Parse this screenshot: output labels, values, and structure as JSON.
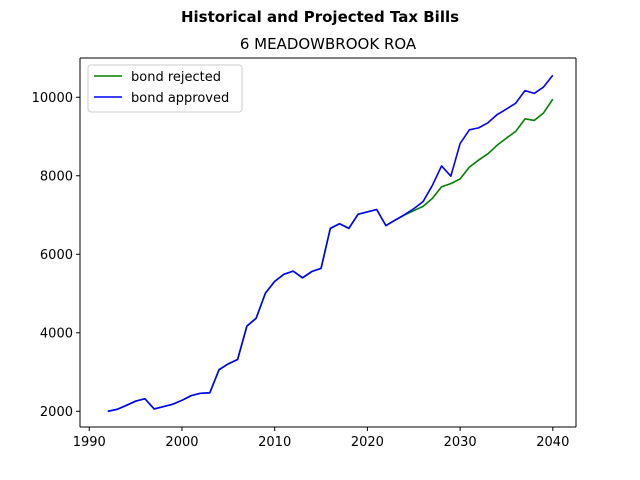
{
  "chart_data": {
    "type": "line",
    "suptitle": "Historical and Projected Tax Bills",
    "title": "6 MEADOWBROOK ROA",
    "xlabel": "",
    "ylabel": "",
    "xlim": [
      1989,
      2042.5
    ],
    "ylim": [
      1600,
      11000
    ],
    "xticks": [
      1990,
      2000,
      2010,
      2020,
      2030,
      2040
    ],
    "yticks": [
      2000,
      4000,
      6000,
      8000,
      10000
    ],
    "grid": false,
    "legend_position": "top-left",
    "series": [
      {
        "name": "bond rejected",
        "color": "#008000",
        "x": [
          1992,
          1993,
          1994,
          1995,
          1996,
          1997,
          1998,
          1999,
          2000,
          2001,
          2002,
          2003,
          2004,
          2005,
          2006,
          2007,
          2008,
          2009,
          2010,
          2011,
          2012,
          2013,
          2014,
          2015,
          2016,
          2017,
          2018,
          2019,
          2020,
          2021,
          2022,
          2023,
          2024,
          2025,
          2026,
          2027,
          2028,
          2029,
          2030,
          2031,
          2032,
          2033,
          2034,
          2035,
          2036,
          2037,
          2038,
          2039,
          2040
        ],
        "y": [
          2000,
          2050,
          2150,
          2260,
          2320,
          2060,
          2120,
          2180,
          2280,
          2400,
          2460,
          2470,
          3060,
          3210,
          3320,
          4170,
          4370,
          5010,
          5310,
          5490,
          5570,
          5400,
          5560,
          5640,
          6660,
          6780,
          6660,
          7020,
          7080,
          7140,
          6730,
          6870,
          7000,
          7110,
          7220,
          7420,
          7720,
          7800,
          7920,
          8220,
          8400,
          8560,
          8780,
          8960,
          9130,
          9450,
          9410,
          9600,
          9950
        ]
      },
      {
        "name": "bond approved",
        "color": "#0000ff",
        "x": [
          1992,
          1993,
          1994,
          1995,
          1996,
          1997,
          1998,
          1999,
          2000,
          2001,
          2002,
          2003,
          2004,
          2005,
          2006,
          2007,
          2008,
          2009,
          2010,
          2011,
          2012,
          2013,
          2014,
          2015,
          2016,
          2017,
          2018,
          2019,
          2020,
          2021,
          2022,
          2023,
          2024,
          2025,
          2026,
          2027,
          2028,
          2029,
          2030,
          2031,
          2032,
          2033,
          2034,
          2035,
          2036,
          2037,
          2038,
          2039,
          2040
        ],
        "y": [
          2000,
          2050,
          2150,
          2260,
          2320,
          2060,
          2120,
          2180,
          2280,
          2400,
          2460,
          2470,
          3060,
          3210,
          3320,
          4170,
          4370,
          5010,
          5310,
          5490,
          5570,
          5400,
          5560,
          5640,
          6660,
          6780,
          6660,
          7020,
          7080,
          7140,
          6730,
          6870,
          7010,
          7160,
          7340,
          7750,
          8250,
          7990,
          8820,
          9170,
          9220,
          9350,
          9560,
          9700,
          9850,
          10170,
          10100,
          10260,
          10560
        ]
      }
    ]
  }
}
